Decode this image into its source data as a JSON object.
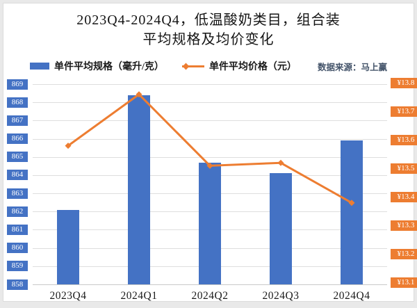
{
  "title": {
    "line1": "2023Q4-2024Q4，低温酸奶类目，组合装",
    "line2": "平均规格及均价变化"
  },
  "legend": {
    "bar_label": "单件平均规格（毫升/克）",
    "line_label": "单件平均价格（元）",
    "source_note": "数据来源：马上赢"
  },
  "colors": {
    "bar": "#4472C4",
    "line": "#ED7D31",
    "grid": "#DEDEDE",
    "title_text": "#141414",
    "source_text": "#44546A"
  },
  "chart_data": {
    "type": "bar",
    "subtype": "bar-line-combo",
    "title": "2023Q4-2024Q4，低温酸奶类目，组合装 平均规格及均价变化",
    "categories": [
      "2023Q4",
      "2024Q1",
      "2024Q2",
      "2024Q3",
      "2024Q4"
    ],
    "series": [
      {
        "name": "单件平均规格（毫升/克）",
        "render": "bar",
        "axis": "left",
        "color": "#4472C4",
        "values": [
          862.1,
          868.4,
          864.7,
          864.1,
          865.9
        ]
      },
      {
        "name": "单件平均价格（元）",
        "render": "line",
        "axis": "right",
        "color": "#ED7D31",
        "values": [
          13.58,
          13.76,
          13.51,
          13.52,
          13.38
        ]
      }
    ],
    "axis_left": {
      "min": 858,
      "max": 869,
      "ticks": [
        869,
        868,
        867,
        866,
        865,
        864,
        863,
        862,
        861,
        860,
        859,
        858
      ]
    },
    "axis_right": {
      "min": 13.1,
      "max": 13.8,
      "prefix": "¥",
      "ticks": [
        13.8,
        13.7,
        13.6,
        13.5,
        13.4,
        13.3,
        13.2,
        13.1
      ]
    },
    "grid": true,
    "legend_position": "top",
    "annotations": [
      "数据来源：马上赢"
    ]
  }
}
